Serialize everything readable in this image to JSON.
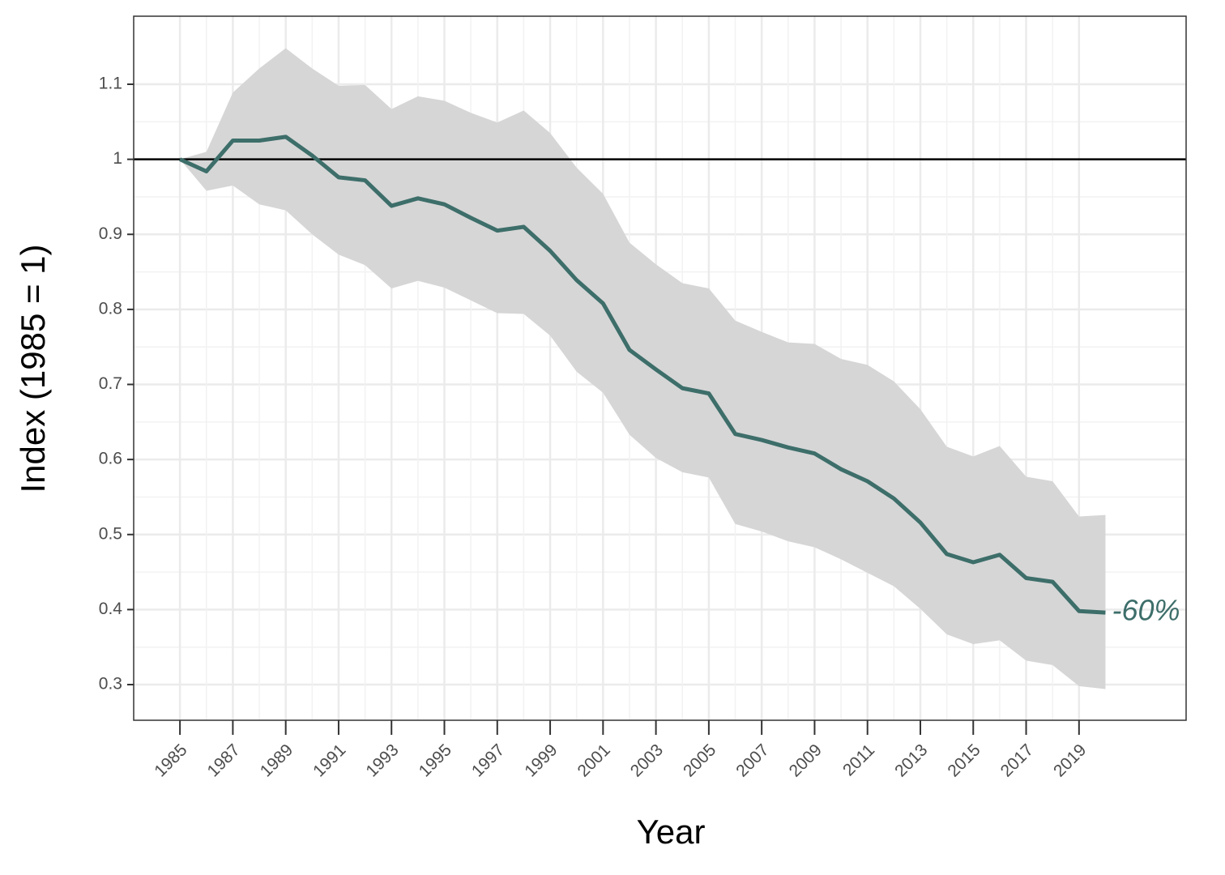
{
  "chart_data": {
    "type": "line",
    "xlabel": "Year",
    "ylabel": "Index (1985 = 1)",
    "x": [
      1985,
      1986,
      1987,
      1988,
      1989,
      1990,
      1991,
      1992,
      1993,
      1994,
      1995,
      1996,
      1997,
      1998,
      1999,
      2000,
      2001,
      2002,
      2003,
      2004,
      2005,
      2006,
      2007,
      2008,
      2009,
      2010,
      2011,
      2012,
      2013,
      2014,
      2015,
      2016,
      2017,
      2018,
      2019,
      2020
    ],
    "values": [
      1.0,
      0.984,
      1.025,
      1.025,
      1.03,
      1.005,
      0.976,
      0.972,
      0.938,
      0.948,
      0.94,
      0.922,
      0.905,
      0.91,
      0.878,
      0.839,
      0.808,
      0.746,
      0.72,
      0.695,
      0.688,
      0.634,
      0.626,
      0.616,
      0.608,
      0.587,
      0.571,
      0.548,
      0.516,
      0.474,
      0.463,
      0.473,
      0.442,
      0.437,
      0.398,
      0.396
    ],
    "upper": [
      1.0,
      1.01,
      1.089,
      1.121,
      1.148,
      1.121,
      1.098,
      1.099,
      1.067,
      1.084,
      1.078,
      1.062,
      1.049,
      1.065,
      1.035,
      0.989,
      0.954,
      0.889,
      0.86,
      0.835,
      0.828,
      0.785,
      0.77,
      0.756,
      0.754,
      0.734,
      0.726,
      0.704,
      0.667,
      0.617,
      0.604,
      0.618,
      0.577,
      0.571,
      0.524,
      0.526
    ],
    "lower": [
      1.0,
      0.958,
      0.965,
      0.94,
      0.932,
      0.9,
      0.873,
      0.859,
      0.828,
      0.838,
      0.829,
      0.812,
      0.795,
      0.794,
      0.765,
      0.717,
      0.689,
      0.633,
      0.602,
      0.583,
      0.576,
      0.514,
      0.504,
      0.491,
      0.483,
      0.467,
      0.449,
      0.431,
      0.401,
      0.367,
      0.354,
      0.359,
      0.332,
      0.326,
      0.298,
      0.294
    ],
    "color": "#3d6e6a",
    "band_color": "#d6d6d6",
    "hline": 1,
    "annotation": "-60%",
    "xlim": [
      1983.25,
      2023.05
    ],
    "ylim": [
      0.2525,
      1.1907
    ],
    "xticks": [
      1985,
      1987,
      1989,
      1991,
      1993,
      1995,
      1997,
      1999,
      2001,
      2003,
      2005,
      2007,
      2009,
      2011,
      2013,
      2015,
      2017,
      2019
    ],
    "yticks": [
      0.3,
      0.4,
      0.5,
      0.6,
      0.7,
      0.8,
      0.9,
      1,
      1.1
    ],
    "grid": true
  }
}
